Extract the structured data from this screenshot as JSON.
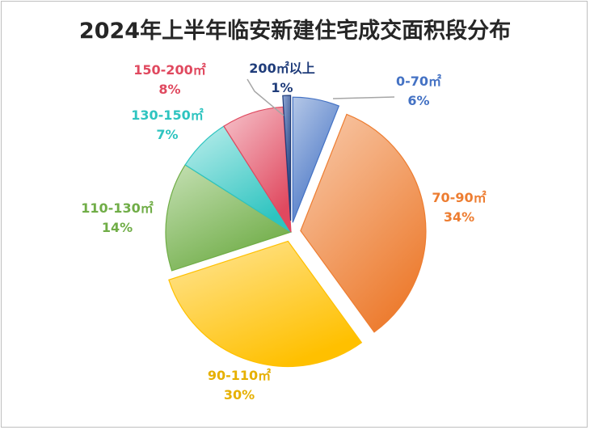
{
  "chart_data": {
    "type": "pie",
    "title": "2024年上半年临安新建住宅成交面积段分布",
    "legend": "none",
    "slices": [
      {
        "category": "0-70㎡",
        "value": 6,
        "label": "6%",
        "color": "#4472c4",
        "color_light": "#b4c7e7"
      },
      {
        "category": "70-90㎡",
        "value": 34,
        "label": "34%",
        "color": "#ed7d31",
        "color_light": "#f8cbad"
      },
      {
        "category": "90-110㎡",
        "value": 30,
        "label": "30%",
        "color": "#ffc000",
        "color_light": "#ffe699"
      },
      {
        "category": "110-130㎡",
        "value": 14,
        "label": "14%",
        "color": "#70ad47",
        "color_light": "#c5e0b4"
      },
      {
        "category": "130-150㎡",
        "value": 7,
        "label": "7%",
        "color": "#2ec4c0",
        "color_light": "#bdeeec"
      },
      {
        "category": "150-200㎡",
        "value": 8,
        "label": "8%",
        "color": "#e0495f",
        "color_light": "#f6c3cb"
      },
      {
        "category": "200㎡以上",
        "value": 1,
        "label": "1%",
        "color": "#1f3c7a",
        "color_light": "#8fa7d6"
      }
    ],
    "label_colors": [
      "#4472c4",
      "#ed7d31",
      "#e6b000",
      "#70ad47",
      "#2ec4c0",
      "#e0495f",
      "#1f3c7a"
    ]
  }
}
